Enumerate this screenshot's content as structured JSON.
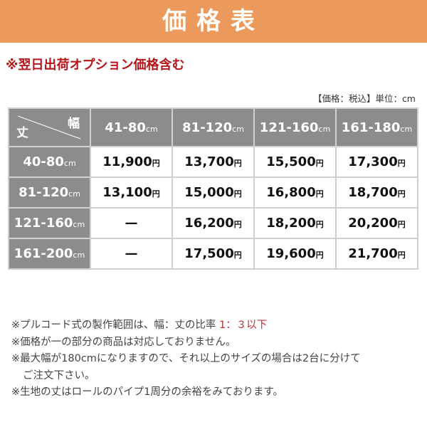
{
  "banner": {
    "title": "価格表",
    "color": "#ec9a5b"
  },
  "subtitle": "※翌日出荷オプション価格含む",
  "unit_note": "【価格：税込】単位：cm",
  "table": {
    "corner": {
      "length_label": "丈",
      "width_label": "幅"
    },
    "unit": "cm",
    "currency": "円",
    "columns": [
      "41-80",
      "81-120",
      "121-160",
      "161-180"
    ],
    "rows": [
      {
        "label": "40-80",
        "prices": [
          "11,900",
          "13,700",
          "15,500",
          "17,300"
        ]
      },
      {
        "label": "81-120",
        "prices": [
          "13,100",
          "15,000",
          "16,800",
          "18,700"
        ]
      },
      {
        "label": "121-160",
        "prices": [
          "—",
          "16,200",
          "18,200",
          "20,200"
        ]
      },
      {
        "label": "161-200",
        "prices": [
          "—",
          "17,500",
          "19,600",
          "21,700"
        ]
      }
    ]
  },
  "notes": {
    "n1": "※プルコード式の製作範囲は、幅：丈の比率",
    "n1_ratio": "1：３以下",
    "n2": "※価格が一の部分の商品は対応しておりません。",
    "n3": "※最大幅が180cmになりますので、それ以上のサイズの場合は2台に分けて",
    "n3b": "ご注文下さい。",
    "n4": "※生地の丈はロールのパイプ1周分の余裕をみております。"
  }
}
